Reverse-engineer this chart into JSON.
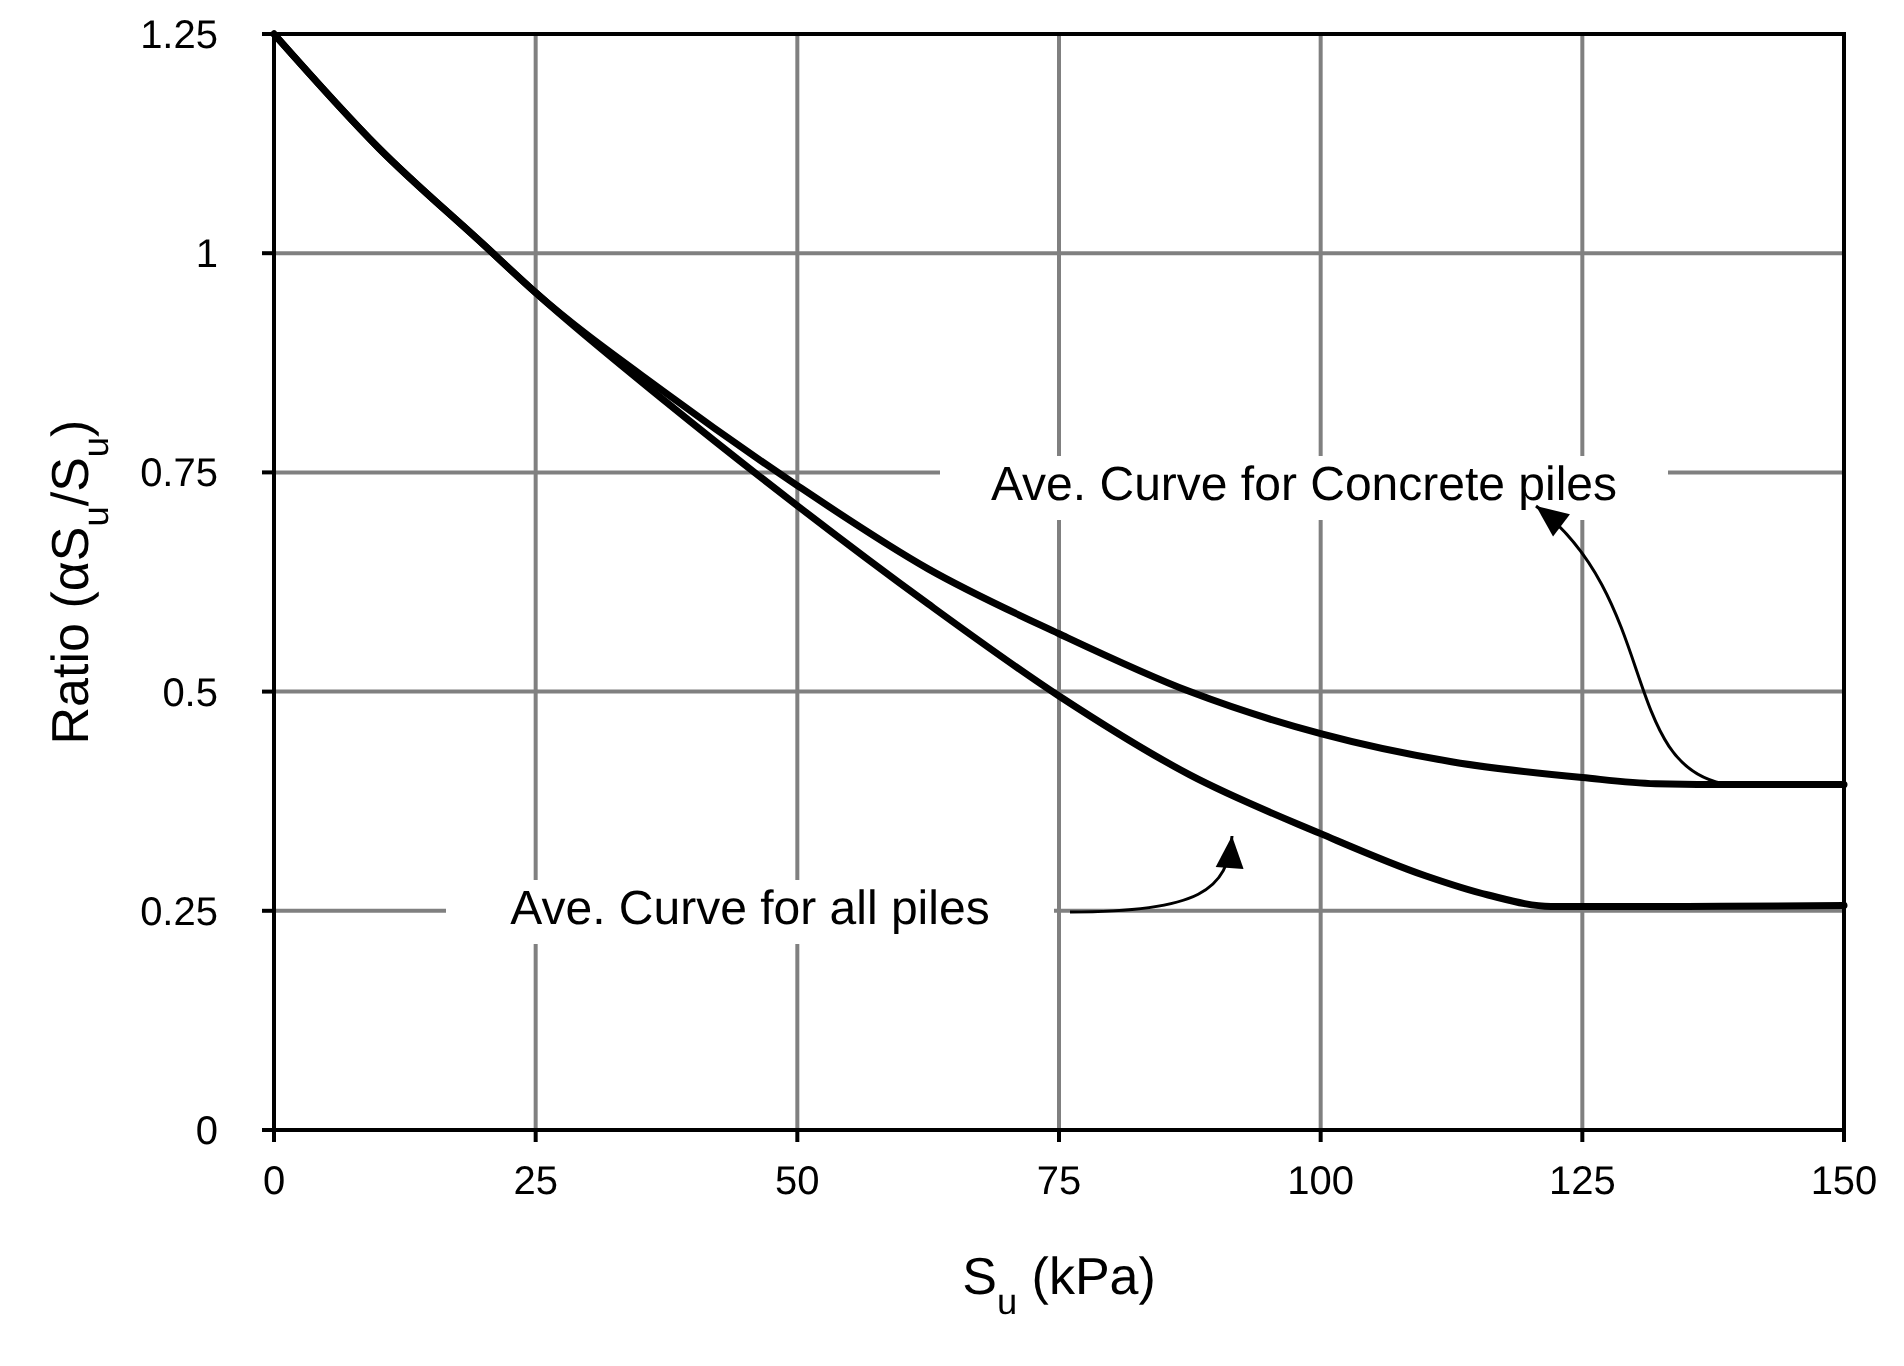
{
  "chart_data": {
    "type": "line",
    "xlabel": "S$_{u}$ (kPa)",
    "ylabel": "Ratio (αS$_{u}$/S$_{u}$)",
    "xlim": [
      0,
      150
    ],
    "ylim": [
      0,
      1.25
    ],
    "xticks": [
      0,
      25,
      50,
      75,
      100,
      125,
      150
    ],
    "yticks": [
      0,
      0.25,
      0.5,
      0.75,
      1,
      1.25
    ],
    "grid": true,
    "marker": "none",
    "line_style": "solid",
    "series": [
      {
        "color": "#000000",
        "x": [
          0,
          10,
          20,
          25,
          37.5,
          50,
          62.5,
          75,
          87.5,
          100,
          112.5,
          125,
          132,
          140,
          150
        ],
        "values": [
          1.25,
          1.12,
          1.01,
          0.955,
          0.84,
          0.735,
          0.64,
          0.566,
          0.5,
          0.452,
          0.42,
          0.402,
          0.395,
          0.394,
          0.394
        ]
      },
      {
        "color": "#000000",
        "x": [
          0,
          10,
          20,
          25,
          37.5,
          50,
          62.5,
          75,
          87.5,
          100,
          110,
          116,
          122,
          135,
          150
        ],
        "values": [
          1.25,
          1.12,
          1.01,
          0.955,
          0.83,
          0.712,
          0.6,
          0.495,
          0.405,
          0.338,
          0.29,
          0.268,
          0.255,
          0.255,
          0.256
        ]
      }
    ],
    "annotations": [
      {
        "text": "Ave. Curve for Concrete piles",
        "x": 139,
        "y": 0.394
      },
      "Ave. Curve for all piles"
    ]
  }
}
